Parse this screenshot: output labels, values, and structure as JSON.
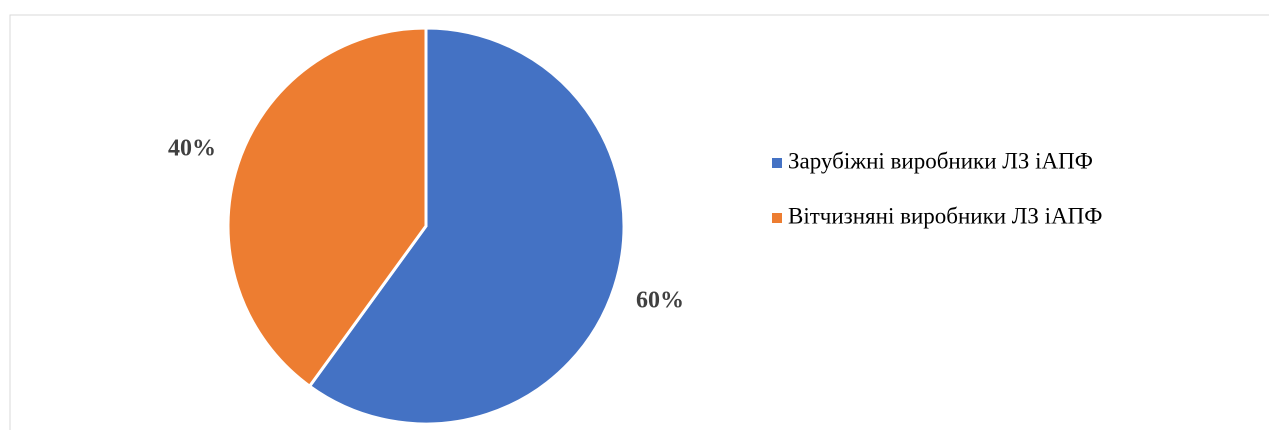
{
  "chart_data": {
    "type": "pie",
    "categories": [
      "Зарубіжні виробники ЛЗ іАПФ",
      "Вітчизняні виробники ЛЗ іАПФ"
    ],
    "values": [
      60,
      40
    ],
    "value_labels": [
      "60%",
      "40%"
    ],
    "colors": [
      "#4472c4",
      "#ed7d31"
    ]
  }
}
